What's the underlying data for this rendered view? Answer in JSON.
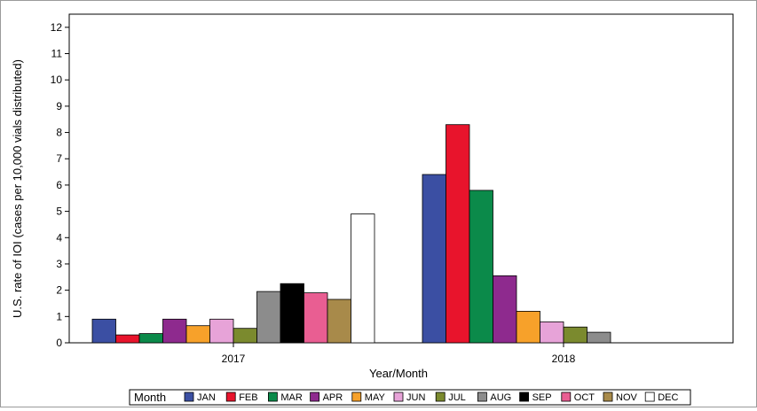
{
  "chart_data": {
    "type": "bar",
    "title": "",
    "xlabel": "Year/Month",
    "ylabel": "U.S. rate of IOI (cases per 10,000 vials distributed)",
    "categories": [
      "2017",
      "2018"
    ],
    "ylim": [
      0,
      12.5
    ],
    "yticks": [
      0,
      1,
      2,
      3,
      4,
      5,
      6,
      7,
      8,
      9,
      10,
      11,
      12
    ],
    "grid": false,
    "legend": {
      "position": "bottom",
      "title": "Month"
    },
    "series": [
      {
        "name": "JAN",
        "color": "#3b4fa3",
        "values": [
          0.9,
          6.4
        ]
      },
      {
        "name": "FEB",
        "color": "#e8142c",
        "values": [
          0.3,
          8.3
        ]
      },
      {
        "name": "MAR",
        "color": "#0b8a4a",
        "values": [
          0.35,
          5.8
        ]
      },
      {
        "name": "APR",
        "color": "#8e2a8e",
        "values": [
          0.9,
          2.55
        ]
      },
      {
        "name": "MAY",
        "color": "#f7a12a",
        "values": [
          0.65,
          1.2
        ]
      },
      {
        "name": "JUN",
        "color": "#e7a3d8",
        "values": [
          0.9,
          0.8
        ]
      },
      {
        "name": "JUL",
        "color": "#7b8a2e",
        "values": [
          0.55,
          0.6
        ]
      },
      {
        "name": "AUG",
        "color": "#8c8c8c",
        "values": [
          1.95,
          0.4
        ]
      },
      {
        "name": "SEP",
        "color": "#000000",
        "values": [
          2.25,
          null
        ]
      },
      {
        "name": "OCT",
        "color": "#e95e92",
        "values": [
          1.9,
          null
        ]
      },
      {
        "name": "NOV",
        "color": "#a88a4a",
        "values": [
          1.65,
          null
        ]
      },
      {
        "name": "DEC",
        "color": "#ffffff",
        "values": [
          4.9,
          null
        ]
      }
    ]
  }
}
